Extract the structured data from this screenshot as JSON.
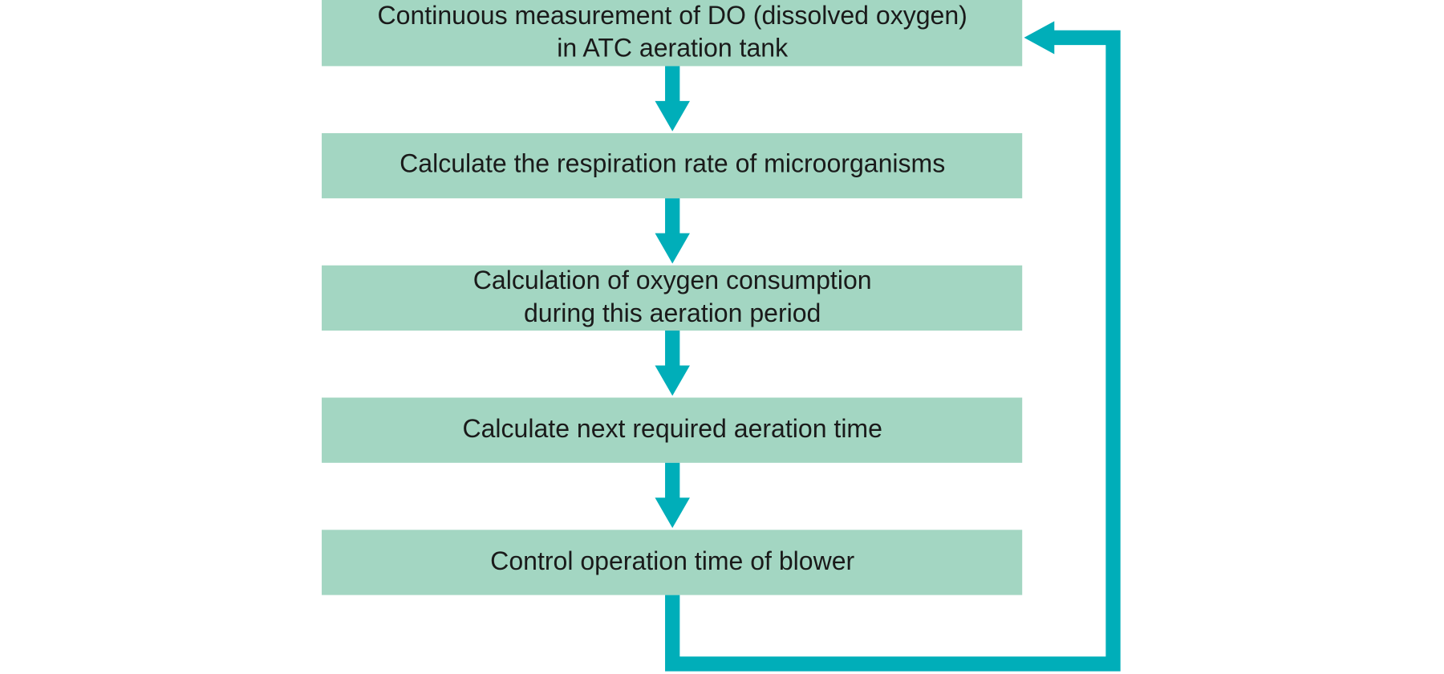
{
  "nodes": [
    {
      "lines": [
        "Continuous measurement of DO (dissolved oxygen)",
        "in ATC aeration tank"
      ]
    },
    {
      "lines": [
        "Calculate the respiration rate of microorganisms"
      ]
    },
    {
      "lines": [
        "Calculation of oxygen consumption",
        "during this aeration period"
      ]
    },
    {
      "lines": [
        "Calculate next required aeration time"
      ]
    },
    {
      "lines": [
        "Control operation time of blower"
      ]
    }
  ]
}
